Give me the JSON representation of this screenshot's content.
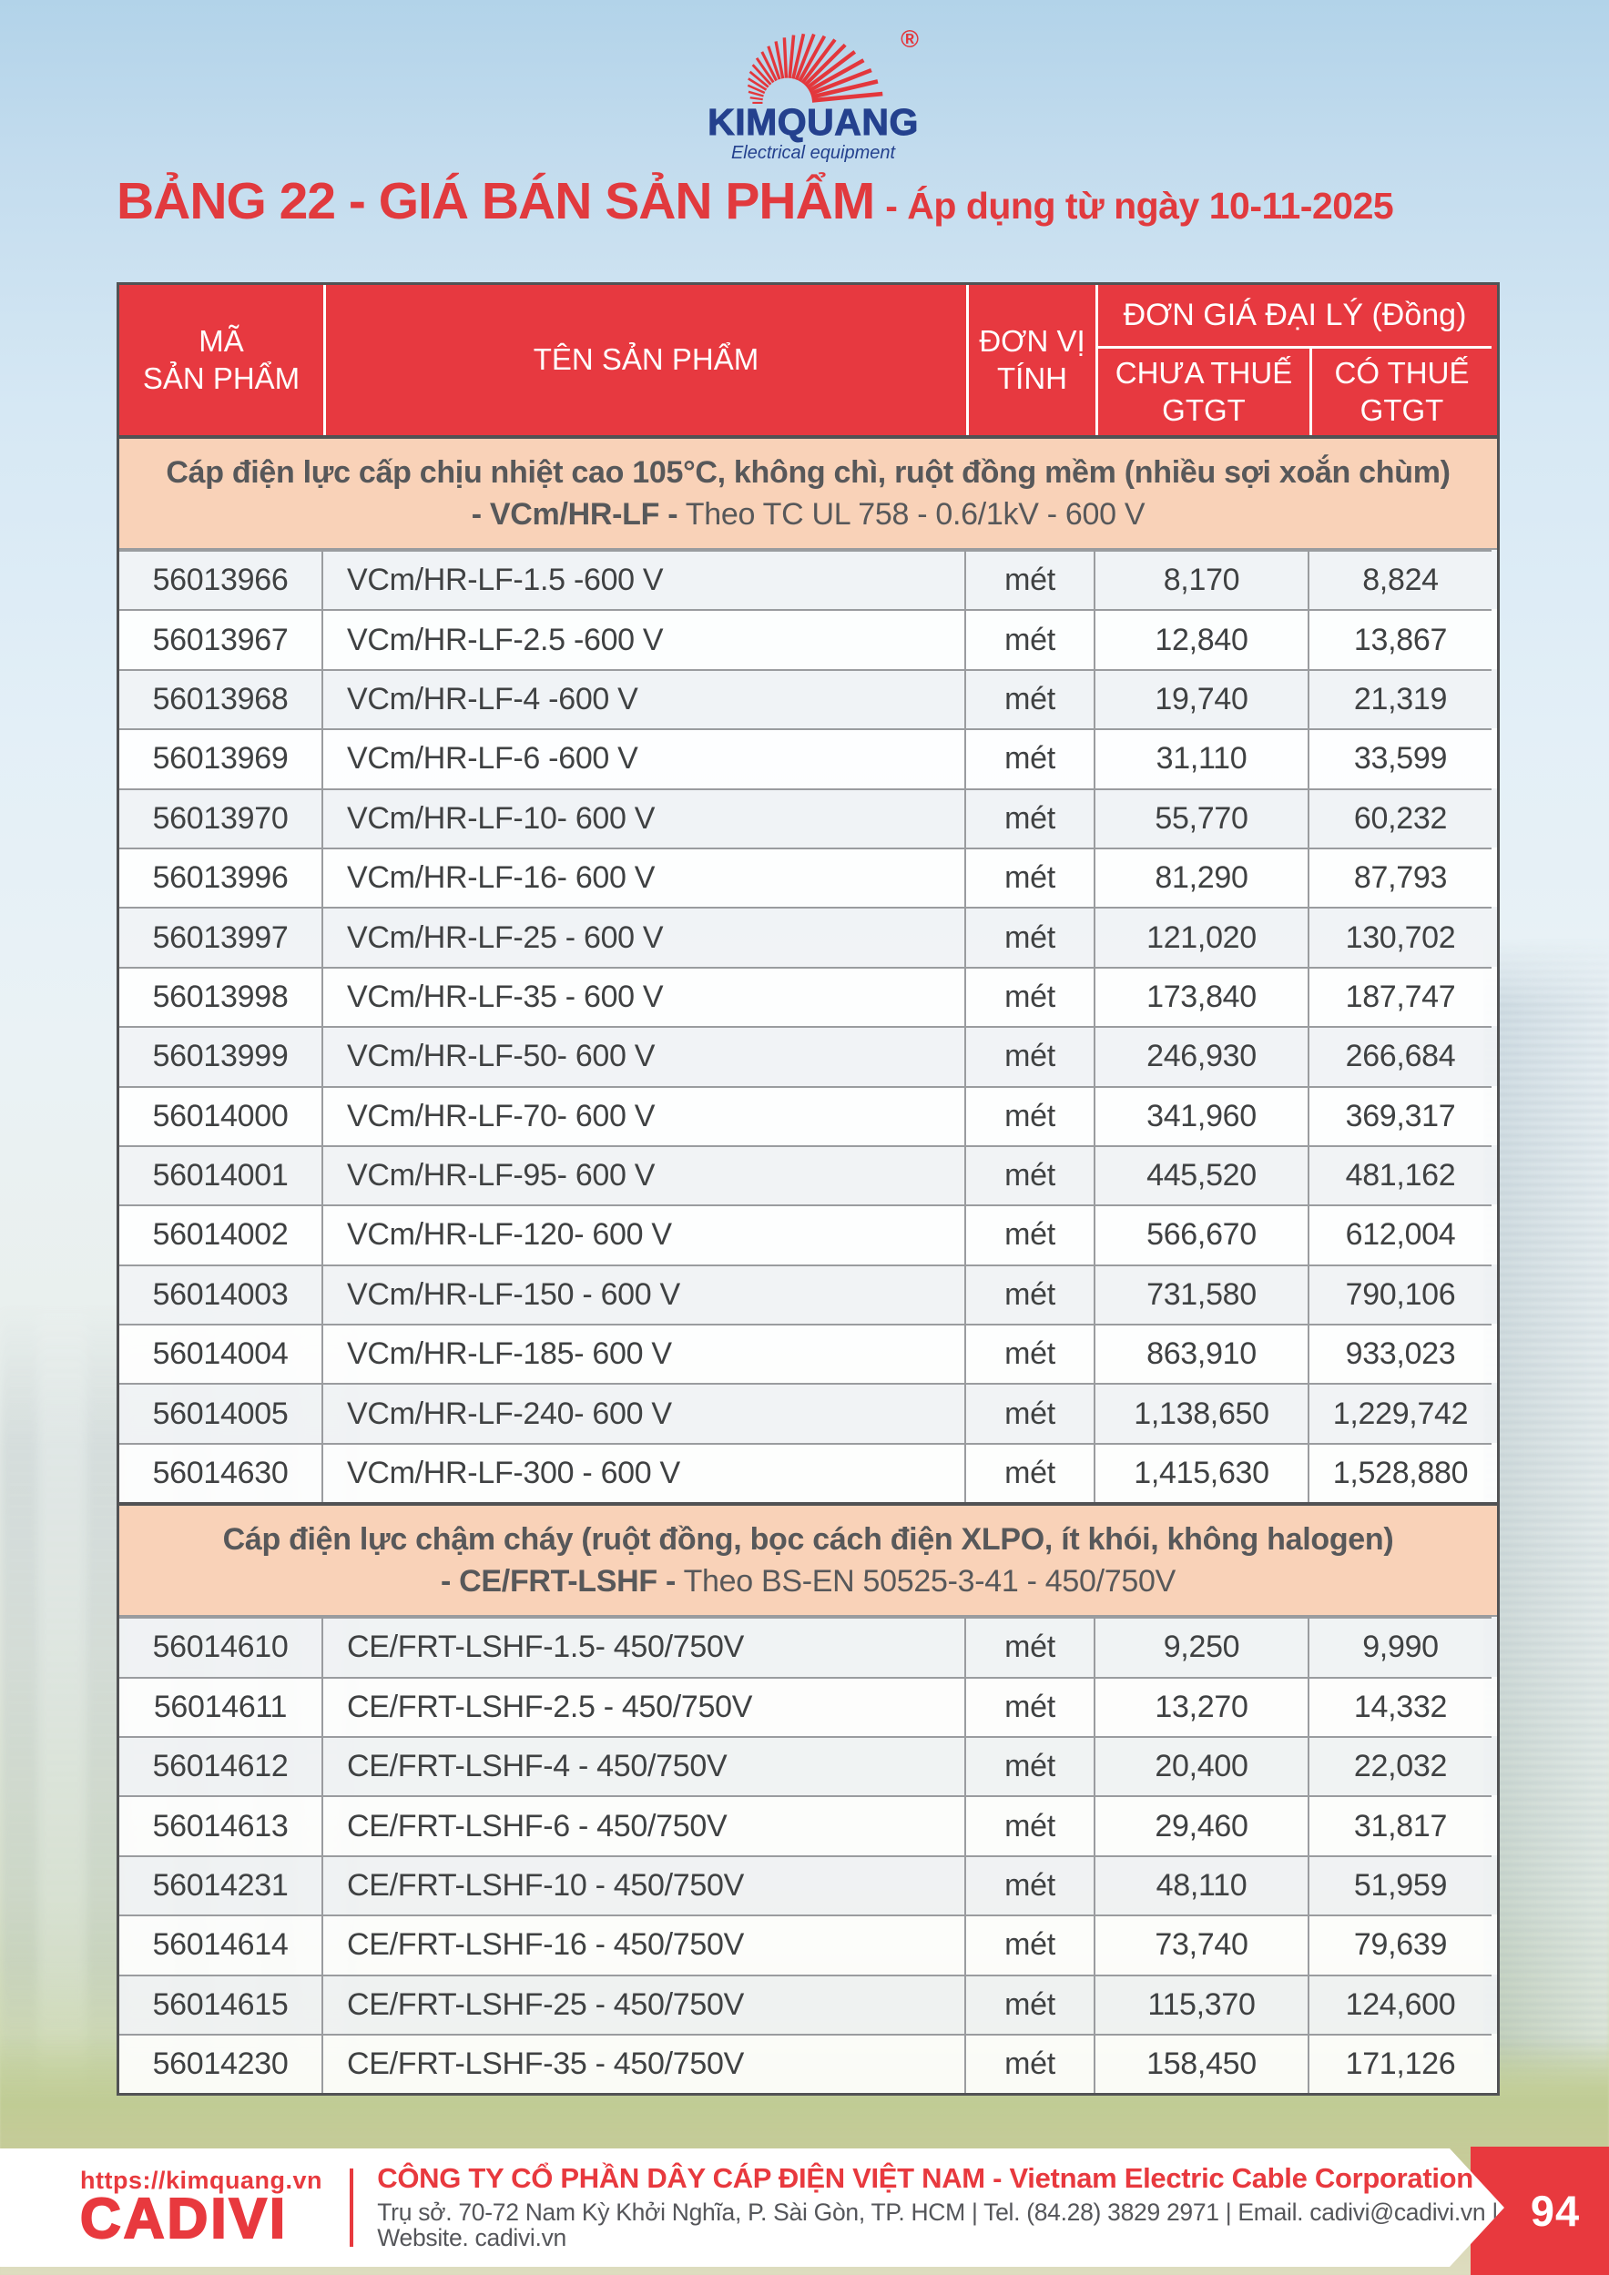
{
  "logo": {
    "brand": "KIMQUANG",
    "tagline": "Electrical equipment",
    "registered": "®"
  },
  "title": {
    "main": "BẢNG 22 - GIÁ BÁN SẢN PHẨM",
    "suffix": "- Áp dụng từ ngày 10-11-2025"
  },
  "table": {
    "col_code": "MÃ\nSẢN PHẨM",
    "col_name": "TÊN SẢN PHẨM",
    "col_unit": "ĐƠN VỊ\nTÍNH",
    "col_price_group": "ĐƠN GIÁ ĐẠI LÝ (Đồng)",
    "col_price_ex": "CHƯA THUẾ\nGTGT",
    "col_price_inc": "CÓ THUẾ\nGTGT",
    "sections": [
      {
        "title": "Cáp điện lực cấp chịu nhiệt cao 105°C, không chì, ruột đồng mềm (nhiều sợi xoắn chùm)",
        "subtitle_bold": "- VCm/HR-LF -",
        "subtitle_rest": " Theo TC UL 758 - 0.6/1kV - 600 V",
        "rows": [
          {
            "code": "56013966",
            "name": "VCm/HR-LF-1.5 -600 V",
            "unit": "mét",
            "price_ex": "8,170",
            "price_inc": "8,824"
          },
          {
            "code": "56013967",
            "name": "VCm/HR-LF-2.5 -600 V",
            "unit": "mét",
            "price_ex": "12,840",
            "price_inc": "13,867"
          },
          {
            "code": "56013968",
            "name": "VCm/HR-LF-4 -600 V",
            "unit": "mét",
            "price_ex": "19,740",
            "price_inc": "21,319"
          },
          {
            "code": "56013969",
            "name": "VCm/HR-LF-6 -600 V",
            "unit": "mét",
            "price_ex": "31,110",
            "price_inc": "33,599"
          },
          {
            "code": "56013970",
            "name": "VCm/HR-LF-10- 600 V",
            "unit": "mét",
            "price_ex": "55,770",
            "price_inc": "60,232"
          },
          {
            "code": "56013996",
            "name": "VCm/HR-LF-16- 600 V",
            "unit": "mét",
            "price_ex": "81,290",
            "price_inc": "87,793"
          },
          {
            "code": "56013997",
            "name": "VCm/HR-LF-25 - 600 V",
            "unit": "mét",
            "price_ex": "121,020",
            "price_inc": "130,702"
          },
          {
            "code": "56013998",
            "name": "VCm/HR-LF-35 - 600 V",
            "unit": "mét",
            "price_ex": "173,840",
            "price_inc": "187,747"
          },
          {
            "code": "56013999",
            "name": "VCm/HR-LF-50- 600 V",
            "unit": "mét",
            "price_ex": "246,930",
            "price_inc": "266,684"
          },
          {
            "code": "56014000",
            "name": "VCm/HR-LF-70- 600 V",
            "unit": "mét",
            "price_ex": "341,960",
            "price_inc": "369,317"
          },
          {
            "code": "56014001",
            "name": "VCm/HR-LF-95- 600 V",
            "unit": "mét",
            "price_ex": "445,520",
            "price_inc": "481,162"
          },
          {
            "code": "56014002",
            "name": "VCm/HR-LF-120- 600 V",
            "unit": "mét",
            "price_ex": "566,670",
            "price_inc": "612,004"
          },
          {
            "code": "56014003",
            "name": "VCm/HR-LF-150 - 600 V",
            "unit": "mét",
            "price_ex": "731,580",
            "price_inc": "790,106"
          },
          {
            "code": "56014004",
            "name": "VCm/HR-LF-185- 600 V",
            "unit": "mét",
            "price_ex": "863,910",
            "price_inc": "933,023"
          },
          {
            "code": "56014005",
            "name": "VCm/HR-LF-240- 600 V",
            "unit": "mét",
            "price_ex": "1,138,650",
            "price_inc": "1,229,742"
          },
          {
            "code": "56014630",
            "name": "VCm/HR-LF-300 - 600 V",
            "unit": "mét",
            "price_ex": "1,415,630",
            "price_inc": "1,528,880"
          }
        ]
      },
      {
        "title": "Cáp điện lực chậm cháy (ruột đồng, bọc cách điện XLPO, ít khói, không halogen)",
        "subtitle_bold": "- CE/FRT-LSHF -",
        "subtitle_rest": " Theo BS-EN 50525-3-41 - 450/750V",
        "rows": [
          {
            "code": "56014610",
            "name": "CE/FRT-LSHF-1.5- 450/750V",
            "unit": "mét",
            "price_ex": "9,250",
            "price_inc": "9,990"
          },
          {
            "code": "56014611",
            "name": "CE/FRT-LSHF-2.5 - 450/750V",
            "unit": "mét",
            "price_ex": "13,270",
            "price_inc": "14,332"
          },
          {
            "code": "56014612",
            "name": "CE/FRT-LSHF-4 - 450/750V",
            "unit": "mét",
            "price_ex": "20,400",
            "price_inc": "22,032"
          },
          {
            "code": "56014613",
            "name": "CE/FRT-LSHF-6 - 450/750V",
            "unit": "mét",
            "price_ex": "29,460",
            "price_inc": "31,817"
          },
          {
            "code": "56014231",
            "name": "CE/FRT-LSHF-10 - 450/750V",
            "unit": "mét",
            "price_ex": "48,110",
            "price_inc": "51,959"
          },
          {
            "code": "56014614",
            "name": "CE/FRT-LSHF-16 - 450/750V",
            "unit": "mét",
            "price_ex": "73,740",
            "price_inc": "79,639"
          },
          {
            "code": "56014615",
            "name": "CE/FRT-LSHF-25 - 450/750V",
            "unit": "mét",
            "price_ex": "115,370",
            "price_inc": "124,600"
          },
          {
            "code": "56014230",
            "name": "CE/FRT-LSHF-35 - 450/750V",
            "unit": "mét",
            "price_ex": "158,450",
            "price_inc": "171,126"
          }
        ]
      }
    ]
  },
  "footer": {
    "website": "https://kimquang.vn",
    "cadivi": "CADIVI",
    "company": "CÔNG TY CỔ PHẦN DÂY CÁP ĐIỆN VIỆT NAM - Vietnam Electric Cable Corporation",
    "address": "Trụ sở. 70-72 Nam Kỳ Khởi Nghĩa, P. Sài Gòn, TP. HCM | Tel. (84.28) 3829 2971 | Email. cadivi@cadivi.vn | Website. cadivi.vn",
    "page_number": "94"
  },
  "colors": {
    "header-red": "#e73940",
    "section-peach": "#f9d2b8",
    "title-red": "#e13a3e",
    "brand-blue": "#24418e",
    "brand-red": "#e3373c",
    "footer-red": "#e8393e",
    "table-border-dark": "#515254",
    "grid-line": "#9a9c9f",
    "text-dark": "#3f4142",
    "section-text": "#57585a",
    "address-gray": "#55565a"
  }
}
